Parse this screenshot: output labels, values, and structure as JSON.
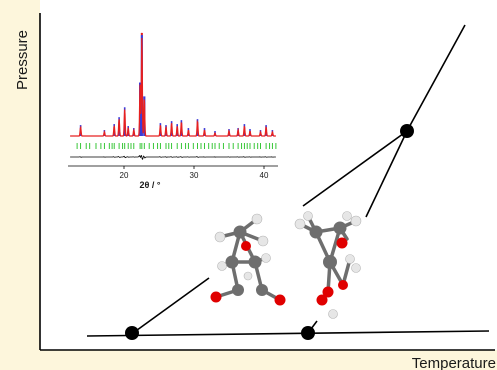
{
  "figure": {
    "y_axis_label": "Pressure",
    "x_axis_label": "Temperature",
    "colors": {
      "background": "#fdf6dc",
      "panel": "#ffffff",
      "axis": "#000000",
      "point": "#000000",
      "pattern_observed": "#3b3bd9",
      "pattern_calculated": "#e62020",
      "pattern_reflections": "#22c022",
      "pattern_difference": "#000000",
      "atom_carbon": "#6e6e6e",
      "atom_hydrogen": "#e6e6e6",
      "atom_oxygen": "#e00000"
    }
  },
  "inset": {
    "x_axis_label": "2θ / °",
    "x_ticks": [
      "20",
      "30",
      "40"
    ],
    "x_range": [
      12,
      42
    ],
    "peaks": [
      {
        "x": 13.8,
        "h": 0.09
      },
      {
        "x": 17.2,
        "h": 0.04
      },
      {
        "x": 18.6,
        "h": 0.1
      },
      {
        "x": 19.3,
        "h": 0.17
      },
      {
        "x": 20.1,
        "h": 0.27
      },
      {
        "x": 20.6,
        "h": 0.08
      },
      {
        "x": 21.4,
        "h": 0.06
      },
      {
        "x": 22.3,
        "h": 0.52
      },
      {
        "x": 22.55,
        "h": 1.0
      },
      {
        "x": 22.9,
        "h": 0.38
      },
      {
        "x": 25.2,
        "h": 0.11
      },
      {
        "x": 26.0,
        "h": 0.09
      },
      {
        "x": 26.8,
        "h": 0.13
      },
      {
        "x": 27.6,
        "h": 0.1
      },
      {
        "x": 28.2,
        "h": 0.14
      },
      {
        "x": 29.2,
        "h": 0.06
      },
      {
        "x": 30.5,
        "h": 0.15
      },
      {
        "x": 31.5,
        "h": 0.06
      },
      {
        "x": 33.0,
        "h": 0.03
      },
      {
        "x": 35.0,
        "h": 0.05
      },
      {
        "x": 36.3,
        "h": 0.06
      },
      {
        "x": 37.2,
        "h": 0.1
      },
      {
        "x": 38.0,
        "h": 0.05
      },
      {
        "x": 39.5,
        "h": 0.04
      },
      {
        "x": 40.3,
        "h": 0.09
      },
      {
        "x": 41.2,
        "h": 0.04
      }
    ],
    "reflections": [
      13.3,
      13.8,
      14.6,
      15.1,
      16.0,
      16.7,
      17.2,
      17.9,
      18.3,
      18.6,
      19.3,
      19.8,
      20.1,
      20.6,
      21.0,
      21.4,
      22.3,
      22.55,
      22.9,
      23.6,
      24.2,
      24.8,
      25.2,
      26.0,
      26.4,
      26.8,
      27.6,
      28.2,
      28.8,
      29.2,
      29.9,
      30.5,
      31.0,
      31.5,
      32.1,
      32.6,
      33.0,
      33.6,
      34.2,
      35.0,
      35.6,
      36.3,
      36.8,
      37.2,
      37.6,
      38.0,
      38.6,
      39.1,
      39.5,
      40.3,
      40.8,
      41.2,
      41.7
    ]
  },
  "phase_diagram": {
    "points": [
      {
        "id": "triple-point-high"
      },
      {
        "id": "point-low-left"
      },
      {
        "id": "point-low-right"
      }
    ]
  }
}
